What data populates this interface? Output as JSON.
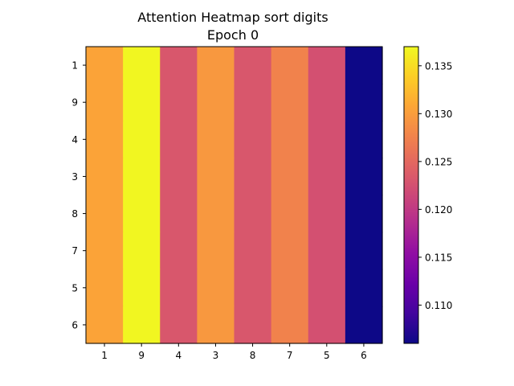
{
  "chart_data": {
    "type": "heatmap",
    "title_line1": "Attention Heatmap sort digits",
    "title_line2": "Epoch 0",
    "x_categories": [
      "1",
      "9",
      "4",
      "3",
      "8",
      "7",
      "5",
      "6"
    ],
    "y_categories": [
      "1",
      "9",
      "4",
      "3",
      "8",
      "7",
      "5",
      "6"
    ],
    "values": [
      [
        0.1305,
        0.1368,
        0.1232,
        0.1295,
        0.1232,
        0.1275,
        0.1225,
        0.106
      ],
      [
        0.1305,
        0.1368,
        0.1232,
        0.1295,
        0.1232,
        0.1275,
        0.1225,
        0.106
      ],
      [
        0.1305,
        0.1368,
        0.1232,
        0.1295,
        0.1232,
        0.1275,
        0.1225,
        0.106
      ],
      [
        0.1305,
        0.1368,
        0.1232,
        0.1295,
        0.1232,
        0.1275,
        0.1225,
        0.106
      ],
      [
        0.1305,
        0.1368,
        0.1232,
        0.1295,
        0.1232,
        0.1275,
        0.1225,
        0.106
      ],
      [
        0.1305,
        0.1368,
        0.1232,
        0.1295,
        0.1232,
        0.1275,
        0.1225,
        0.106
      ],
      [
        0.1305,
        0.1368,
        0.1232,
        0.1295,
        0.1232,
        0.1275,
        0.1225,
        0.106
      ],
      [
        0.1305,
        0.1368,
        0.1232,
        0.1295,
        0.1232,
        0.1275,
        0.1225,
        0.106
      ]
    ],
    "colormap": "plasma",
    "colorbar": {
      "min": 0.106,
      "max": 0.137,
      "ticks": [
        0.11,
        0.115,
        0.12,
        0.125,
        0.13,
        0.135
      ],
      "tick_labels": [
        "0.110",
        "0.115",
        "0.120",
        "0.125",
        "0.130",
        "0.135"
      ]
    }
  }
}
